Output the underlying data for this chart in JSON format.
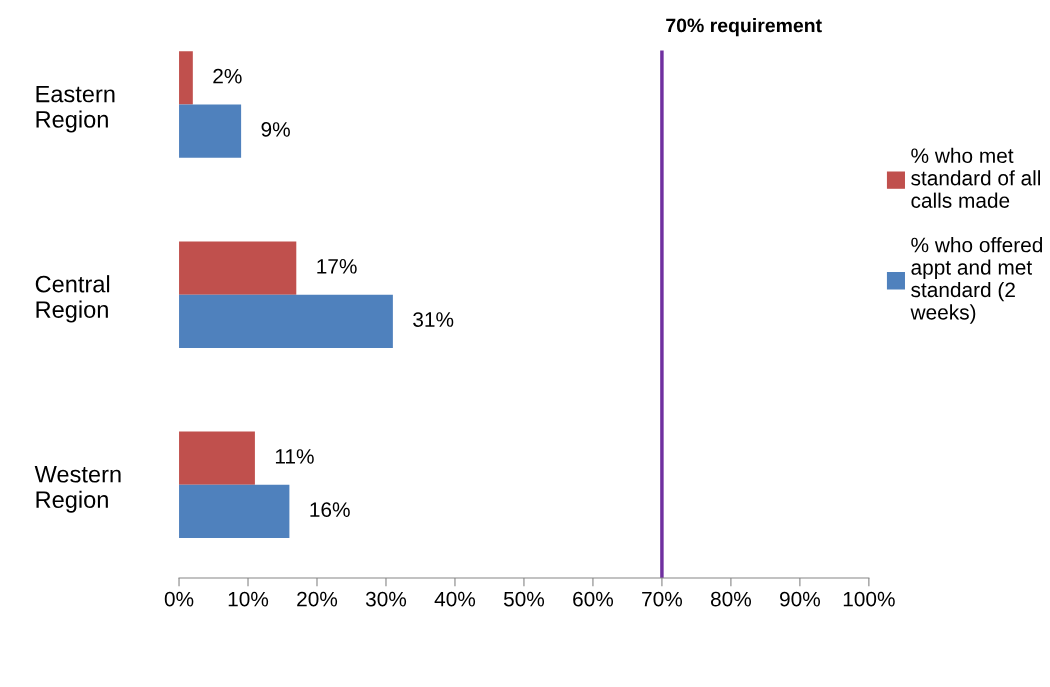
{
  "chart_data": {
    "type": "bar",
    "orientation": "horizontal",
    "categories": [
      "Eastern Region",
      "Central Region",
      "Western Region"
    ],
    "series": [
      {
        "name": "% who met standard of all calls made",
        "color": "#c0504d",
        "values": [
          2,
          17,
          11
        ]
      },
      {
        "name": "% who offered appt and met standard (2 weeks)",
        "color": "#4f81bd",
        "values": [
          9,
          31,
          16
        ]
      }
    ],
    "value_labels": [
      [
        "2%",
        "17%",
        "11%"
      ],
      [
        "9%",
        "31%",
        "16%"
      ]
    ],
    "xlim": [
      0,
      100
    ],
    "xticks": [
      {
        "value": 0,
        "label": "0%"
      },
      {
        "value": 10,
        "label": "10%"
      },
      {
        "value": 20,
        "label": "20%"
      },
      {
        "value": 30,
        "label": "30%"
      },
      {
        "value": 40,
        "label": "40%"
      },
      {
        "value": 50,
        "label": "50%"
      },
      {
        "value": 60,
        "label": "60%"
      },
      {
        "value": 70,
        "label": "70%"
      },
      {
        "value": 80,
        "label": "80%"
      },
      {
        "value": 90,
        "label": "90%"
      },
      {
        "value": 100,
        "label": "100%"
      }
    ],
    "ref_lines": [
      {
        "axis": "x",
        "value": 70,
        "label": "70% requirement",
        "color": "#7030a0"
      }
    ],
    "grid": false,
    "legend": "right"
  }
}
